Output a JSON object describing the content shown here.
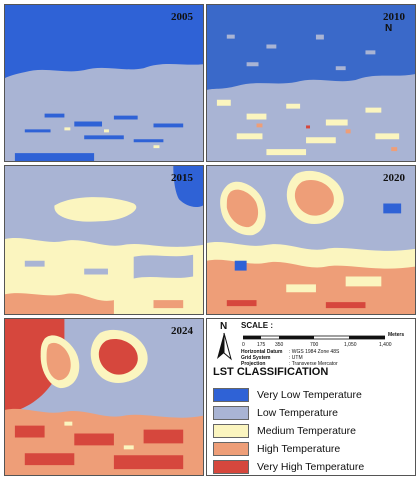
{
  "panels": [
    {
      "year": "2005"
    },
    {
      "year": "2010"
    },
    {
      "year": "2015"
    },
    {
      "year": "2020"
    },
    {
      "year": "2024"
    }
  ],
  "north_arrow": "N",
  "scale": {
    "title": "SCALE :",
    "ticks": [
      "0",
      "175",
      "350",
      "700",
      "1,050",
      "1,400"
    ],
    "unit": "Meters"
  },
  "metadata": [
    {
      "key": "Horizontal Datum",
      "value": ": WGS 1984 Zone 48S"
    },
    {
      "key": "Grid System",
      "value": ": UTM"
    },
    {
      "key": "Projection",
      "value": ": Transverse Mercator"
    }
  ],
  "legend": {
    "title": "LST CLASSIFICATION",
    "items": [
      {
        "label": "Very Low Temperature",
        "color": "#2f62d6"
      },
      {
        "label": "Low Temperature",
        "color": "#a9b4d4"
      },
      {
        "label": "Medium Temperature",
        "color": "#fbf5bf"
      },
      {
        "label": "High Temperature",
        "color": "#ee9e78"
      },
      {
        "label": "Very High Temperature",
        "color": "#d6473d"
      }
    ]
  }
}
